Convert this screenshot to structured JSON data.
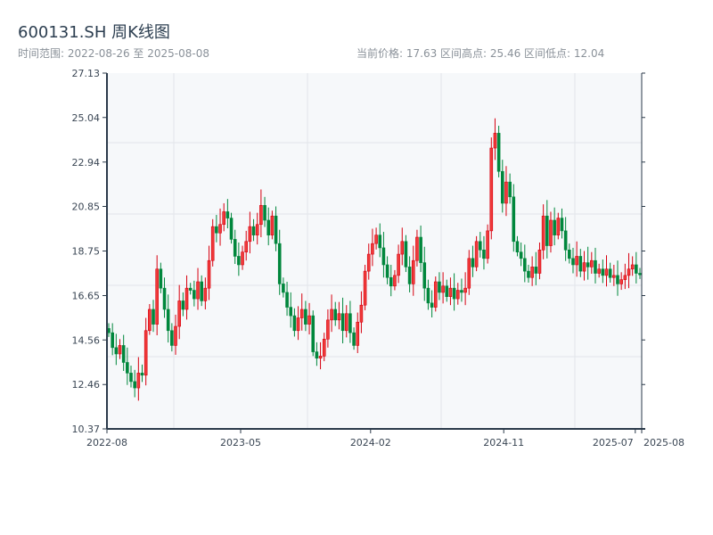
{
  "header": {
    "title": "600131.SH 周K线图",
    "range": "时间范围: 2022-08-26 至 2025-08-08",
    "stats": "当前价格: 17.63  区间高点: 25.46  区间低点: 12.04"
  },
  "colors": {
    "up": "#d7000f",
    "down": "#00873c",
    "axis": "#2b3a4a",
    "plot_bg": "#f6f8fa",
    "grid": "#e2e5ea"
  },
  "chart_data": {
    "type": "candlestick",
    "title": "600131.SH 周K线图",
    "ylim": [
      10.37,
      27.13
    ],
    "yticks": [
      "10.37",
      "12.46",
      "14.56",
      "16.65",
      "18.75",
      "20.85",
      "22.94",
      "25.04",
      "27.13"
    ],
    "xticks": [
      {
        "label": "2022-08",
        "pos": 0
      },
      {
        "label": "2023-05",
        "pos": 0.25
      },
      {
        "label": "2024-02",
        "pos": 0.493
      },
      {
        "label": "2024-11",
        "pos": 0.742
      },
      {
        "label": "2025-07",
        "pos": 0.988
      },
      {
        "label": "2025-08",
        "pos": 1.0
      }
    ],
    "first_open": 15.1,
    "close": [
      14.9,
      14.2,
      13.9,
      14.3,
      13.5,
      13.0,
      12.6,
      12.3,
      13.0,
      12.9,
      15.0,
      16.0,
      15.3,
      17.9,
      17.0,
      16.0,
      15.0,
      14.3,
      15.2,
      16.4,
      16.0,
      17.0,
      16.9,
      16.5,
      17.3,
      16.4,
      17.0,
      18.3,
      19.9,
      19.6,
      20.0,
      20.6,
      20.3,
      19.3,
      18.5,
      18.1,
      18.7,
      19.2,
      19.9,
      19.5,
      20.0,
      20.9,
      20.2,
      19.5,
      20.4,
      19.1,
      17.2,
      16.8,
      16.1,
      15.7,
      15.0,
      15.6,
      16.0,
      15.3,
      15.7,
      14.0,
      13.7,
      13.8,
      14.6,
      15.5,
      16.0,
      15.5,
      15.8,
      15.0,
      15.8,
      14.9,
      14.3,
      15.4,
      16.2,
      17.8,
      18.6,
      19.1,
      19.5,
      18.9,
      18.1,
      17.5,
      17.1,
      17.6,
      18.6,
      19.2,
      18.0,
      17.2,
      18.3,
      19.4,
      18.2,
      17.0,
      16.3,
      16.1,
      17.3,
      16.8,
      17.1,
      16.6,
      17.0,
      16.5,
      16.9,
      16.8,
      17.0,
      18.4,
      18.0,
      19.2,
      18.8,
      18.4,
      19.7,
      23.6,
      24.3,
      22.5,
      21.0,
      22.0,
      21.3,
      19.2,
      18.7,
      18.4,
      17.8,
      17.5,
      18.0,
      17.7,
      18.8,
      20.4,
      19.0,
      20.2,
      19.5,
      20.3,
      19.7,
      18.8,
      18.4,
      18.1,
      18.5,
      17.8,
      18.2,
      18.0,
      18.3,
      17.7,
      17.9,
      17.6,
      17.9,
      17.5,
      17.6,
      17.2,
      17.4,
      17.6,
      17.9,
      18.1,
      17.7,
      17.63
    ]
  }
}
